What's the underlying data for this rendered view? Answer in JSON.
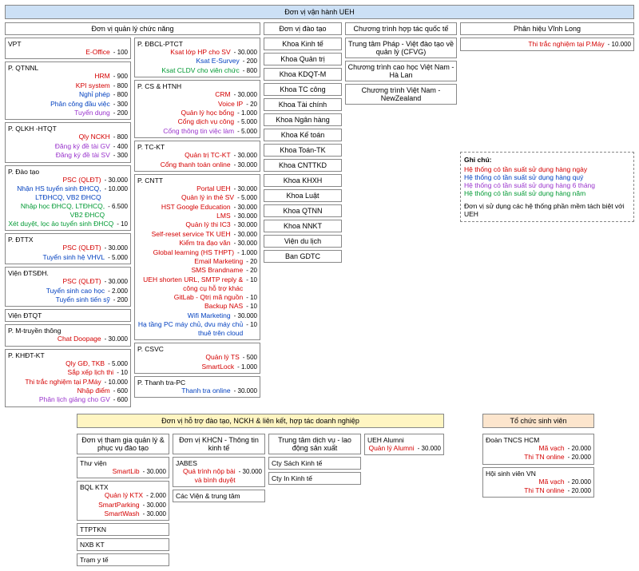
{
  "colors": {
    "red": "#d40000",
    "blue": "#003fbf",
    "green": "#009933",
    "purple": "#9933cc",
    "black": "#000000",
    "root_bg": "#cce0f5",
    "yellow_bg": "#fff5c2",
    "orange_bg": "#fce5cd",
    "gray_bg": "#e8e8e8"
  },
  "root": "Đơn vị vận hành UEH",
  "top_groups": {
    "g1": "Đơn vị quản lý chức năng",
    "g2": "Đơn vị đào tạo",
    "g3": "Chương trình hợp tác quốc tế",
    "g4": "Phân hiệu Vĩnh Long"
  },
  "g1_colA": [
    {
      "title": "VPT",
      "items": [
        {
          "l": "E-Office",
          "n": "100",
          "c": "red"
        }
      ]
    },
    {
      "title": "P. QTNNL",
      "items": [
        {
          "l": "HRM",
          "n": "900",
          "c": "red"
        },
        {
          "l": "KPI system",
          "n": "800",
          "c": "red"
        },
        {
          "l": "Nghỉ phép",
          "n": "800",
          "c": "blue"
        },
        {
          "l": "Phân công đầu việc",
          "n": "300",
          "c": "blue"
        },
        {
          "l": "Tuyển dụng",
          "n": "200",
          "c": "purple"
        }
      ]
    },
    {
      "title": "P. QLKH -HTQT",
      "items": [
        {
          "l": "Qly NCKH",
          "n": "800",
          "c": "red"
        },
        {
          "l": "Đăng ký đề tài GV",
          "n": "400",
          "c": "purple"
        },
        {
          "l": "Đăng ký đề tài SV",
          "n": "300",
          "c": "purple"
        }
      ]
    },
    {
      "title": "P. Đào tạo",
      "items": [
        {
          "l": "PSC (QLĐT)",
          "n": "30.000",
          "c": "red"
        },
        {
          "l": "Nhận HS tuyển sinh ĐHCQ, LTĐHCQ, VB2 ĐHCQ",
          "n": "10.000",
          "c": "blue"
        },
        {
          "l": "Nhập học ĐHCQ, LTĐHCQ, VB2 ĐHCQ",
          "n": "6.500",
          "c": "green"
        },
        {
          "l": "Xét duyệt, lọc ảo tuyển sinh ĐHCQ",
          "n": "10",
          "c": "green"
        }
      ]
    },
    {
      "title": "P. ĐTTX",
      "items": [
        {
          "l": "PSC (QLĐT)",
          "n": "30.000",
          "c": "red"
        },
        {
          "l": "Tuyển sinh hệ VHVL",
          "n": "5.000",
          "c": "blue"
        }
      ]
    },
    {
      "title": "Viện ĐTSĐH.",
      "items": [
        {
          "l": "PSC (QLĐT)",
          "n": "30.000",
          "c": "red"
        },
        {
          "l": "Tuyển sinh cao học",
          "n": "2.000",
          "c": "blue"
        },
        {
          "l": "Tuyển sinh tiến sỹ",
          "n": "200",
          "c": "blue"
        }
      ]
    },
    {
      "title": "Viện ĐTQT",
      "items": []
    },
    {
      "title": "P. M-truyền thông",
      "items": [
        {
          "l": "Chat Doopage",
          "n": "30.000",
          "c": "red"
        }
      ]
    },
    {
      "title": "P. KHĐT-KT",
      "items": [
        {
          "l": "Qly GĐ, TKB",
          "n": "5.000",
          "c": "red"
        },
        {
          "l": "Sắp xếp lịch thi",
          "n": "10",
          "c": "red"
        },
        {
          "l": "Thi trắc nghiệm tại P.Máy",
          "n": "10.000",
          "c": "red"
        },
        {
          "l": "Nhập điểm",
          "n": "600",
          "c": "red"
        },
        {
          "l": "Phân lịch giảng cho GV",
          "n": "600",
          "c": "purple"
        }
      ]
    }
  ],
  "g1_colB": [
    {
      "title": "P. ĐBCL-PTCT",
      "items": [
        {
          "l": "Ksat lớp HP cho SV",
          "n": "30.000",
          "c": "red"
        },
        {
          "l": "Ksat E-Survey",
          "n": "200",
          "c": "blue"
        },
        {
          "l": "Ksat CLDV cho viên chức",
          "n": "800",
          "c": "green"
        }
      ]
    },
    {
      "title": "P. CS & HTNH",
      "items": [
        {
          "l": "CRM",
          "n": "30.000",
          "c": "red"
        },
        {
          "l": "Voice IP",
          "n": "20",
          "c": "red"
        },
        {
          "l": "Quản lý học bổng",
          "n": "1.000",
          "c": "red"
        },
        {
          "l": "Cổng dịch vụ công",
          "n": "5.000",
          "c": "red"
        },
        {
          "l": "Cổng thông tin việc làm",
          "n": "5.000",
          "c": "purple"
        }
      ]
    },
    {
      "title": "P. TC-KT",
      "items": [
        {
          "l": "Quản trị TC-KT",
          "n": "30.000",
          "c": "red"
        },
        {
          "l": "Cổng thanh toán online",
          "n": "30.000",
          "c": "red"
        }
      ]
    },
    {
      "title": "P. CNTT",
      "items": [
        {
          "l": "Portal UEH",
          "n": "30.000",
          "c": "red"
        },
        {
          "l": "Quản lý in thẻ SV",
          "n": "5.000",
          "c": "red"
        },
        {
          "l": "HST Google Education",
          "n": "30.000",
          "c": "red"
        },
        {
          "l": "LMS",
          "n": "30.000",
          "c": "red"
        },
        {
          "l": "Quản lý thi IC3",
          "n": "30.000",
          "c": "red"
        },
        {
          "l": "Self-reset service TK UEH",
          "n": "30.000",
          "c": "red"
        },
        {
          "l": "Kiểm tra đạo văn",
          "n": "30.000",
          "c": "red"
        },
        {
          "l": "Global learning (HS THPT)",
          "n": "1.000",
          "c": "red"
        },
        {
          "l": "Email Marketing",
          "n": "20",
          "c": "red"
        },
        {
          "l": "SMS Brandname",
          "n": "20",
          "c": "red"
        },
        {
          "l": "UEH shorten URL, SMTP reply & công cụ hỗ trợ khác",
          "n": "10",
          "c": "red"
        },
        {
          "l": "GitLab - Qtrị mã nguồn",
          "n": "10",
          "c": "red"
        },
        {
          "l": "Backup NAS",
          "n": "10",
          "c": "red"
        },
        {
          "l": "Wifi Marketing",
          "n": "30.000",
          "c": "blue"
        },
        {
          "l": "Hạ tầng PC máy chủ, dvu máy chủ thuê trên cloud",
          "n": "10",
          "c": "blue"
        }
      ]
    },
    {
      "title": "P. CSVC",
      "items": [
        {
          "l": "Quản lý TS",
          "n": "500",
          "c": "red"
        },
        {
          "l": "SmartLock",
          "n": "1.000",
          "c": "red"
        }
      ]
    },
    {
      "title": "P. Thanh tra-PC",
      "items": [
        {
          "l": "Thanh tra online",
          "n": "30.000",
          "c": "blue"
        }
      ]
    }
  ],
  "g2_list": [
    "Khoa Kinh tế",
    "Khoa Quản trị",
    "Khoa KDQT-M",
    "Khoa TC công",
    "Khoa Tài chính",
    "Khoa Ngân hàng",
    "Khoa Kế toán",
    "Khoa Toán-TK",
    "Khoa CNTTKD",
    "Khoa KHXH",
    "Khoa Luật",
    "Khoa QTNN",
    "Khoa NNKT",
    "Viện du lịch",
    "Ban GDTC"
  ],
  "g3_list": [
    "Trung tâm Pháp - Việt đào tạo về quản lý (CFVG)",
    "Chương trình cao học Việt Nam - Hà Lan",
    "Chương trình Việt Nam - NewZealand"
  ],
  "g4_items": [
    {
      "l": "Thi trắc nghiệm tại P.Máy",
      "n": "10.000",
      "c": "red"
    }
  ],
  "legend": {
    "title": "Ghi chú:",
    "lines": [
      {
        "t": "Hệ thống có tần suất sử dụng hàng ngày",
        "c": "red"
      },
      {
        "t": "Hệ thống có tần suất sử dụng hàng quý",
        "c": "blue"
      },
      {
        "t": "Hệ thống có tần suất sử dụng hàng 6 tháng",
        "c": "purple"
      },
      {
        "t": "Hệ thống có tần suất sử dụng hàng năm",
        "c": "green"
      }
    ],
    "note": "Đơn vị sử dụng các hệ thống phần mềm tách biệt với UEH"
  },
  "lower": {
    "header": "Đơn vị hỗ trợ đào tạo, NCKH & liên kết, hợp tác doanh nghiệp",
    "sv_header": "Tổ chức sinh viên",
    "colA": {
      "header": "Đơn vị tham gia quản lý & phục vụ đào tạo",
      "boxes": [
        {
          "title": "Thư viện",
          "items": [
            {
              "l": "SmartLib",
              "n": "30.000",
              "c": "red"
            }
          ]
        },
        {
          "title": "BQL KTX",
          "items": [
            {
              "l": "Quản lý KTX",
              "n": "2.000",
              "c": "red"
            },
            {
              "l": "SmartParking",
              "n": "30.000",
              "c": "red"
            },
            {
              "l": "SmartWash",
              "n": "30.000",
              "c": "red"
            }
          ]
        },
        {
          "title": "TTPTKN",
          "items": []
        },
        {
          "title": "NXB KT",
          "items": []
        },
        {
          "title": "Trạm y tế",
          "items": []
        }
      ]
    },
    "colB": {
      "header": "Đơn vị KHCN - Thông tin kinh tế",
      "boxes": [
        {
          "title": "JABES",
          "items": [
            {
              "l": "Quá trình nộp bài và bình duyệt",
              "n": "30.000",
              "c": "red"
            }
          ]
        },
        {
          "title": "Các Viện & trung tâm",
          "items": []
        }
      ]
    },
    "colC": {
      "header": "Trung tâm dịch vụ - lao động sản xuất",
      "boxes": [
        {
          "title": "Cty Sách Kinh tế",
          "items": []
        },
        {
          "title": "Cty In Kinh tế",
          "items": []
        }
      ]
    },
    "colD": {
      "header": "UEH Alumni",
      "items": [
        {
          "l": "Quản lý Alumni",
          "n": "30.000",
          "c": "red"
        }
      ]
    },
    "sv": [
      {
        "title": "Đoàn TNCS HCM",
        "items": [
          {
            "l": "Mã vạch",
            "n": "20.000",
            "c": "red"
          },
          {
            "l": "Thi TN online",
            "n": "20.000",
            "c": "red"
          }
        ]
      },
      {
        "title": "Hội sinh viên VN",
        "items": [
          {
            "l": "Mã vạch",
            "n": "20.000",
            "c": "red"
          },
          {
            "l": "Thi TN online",
            "n": "20.000",
            "c": "red"
          }
        ]
      }
    ]
  }
}
